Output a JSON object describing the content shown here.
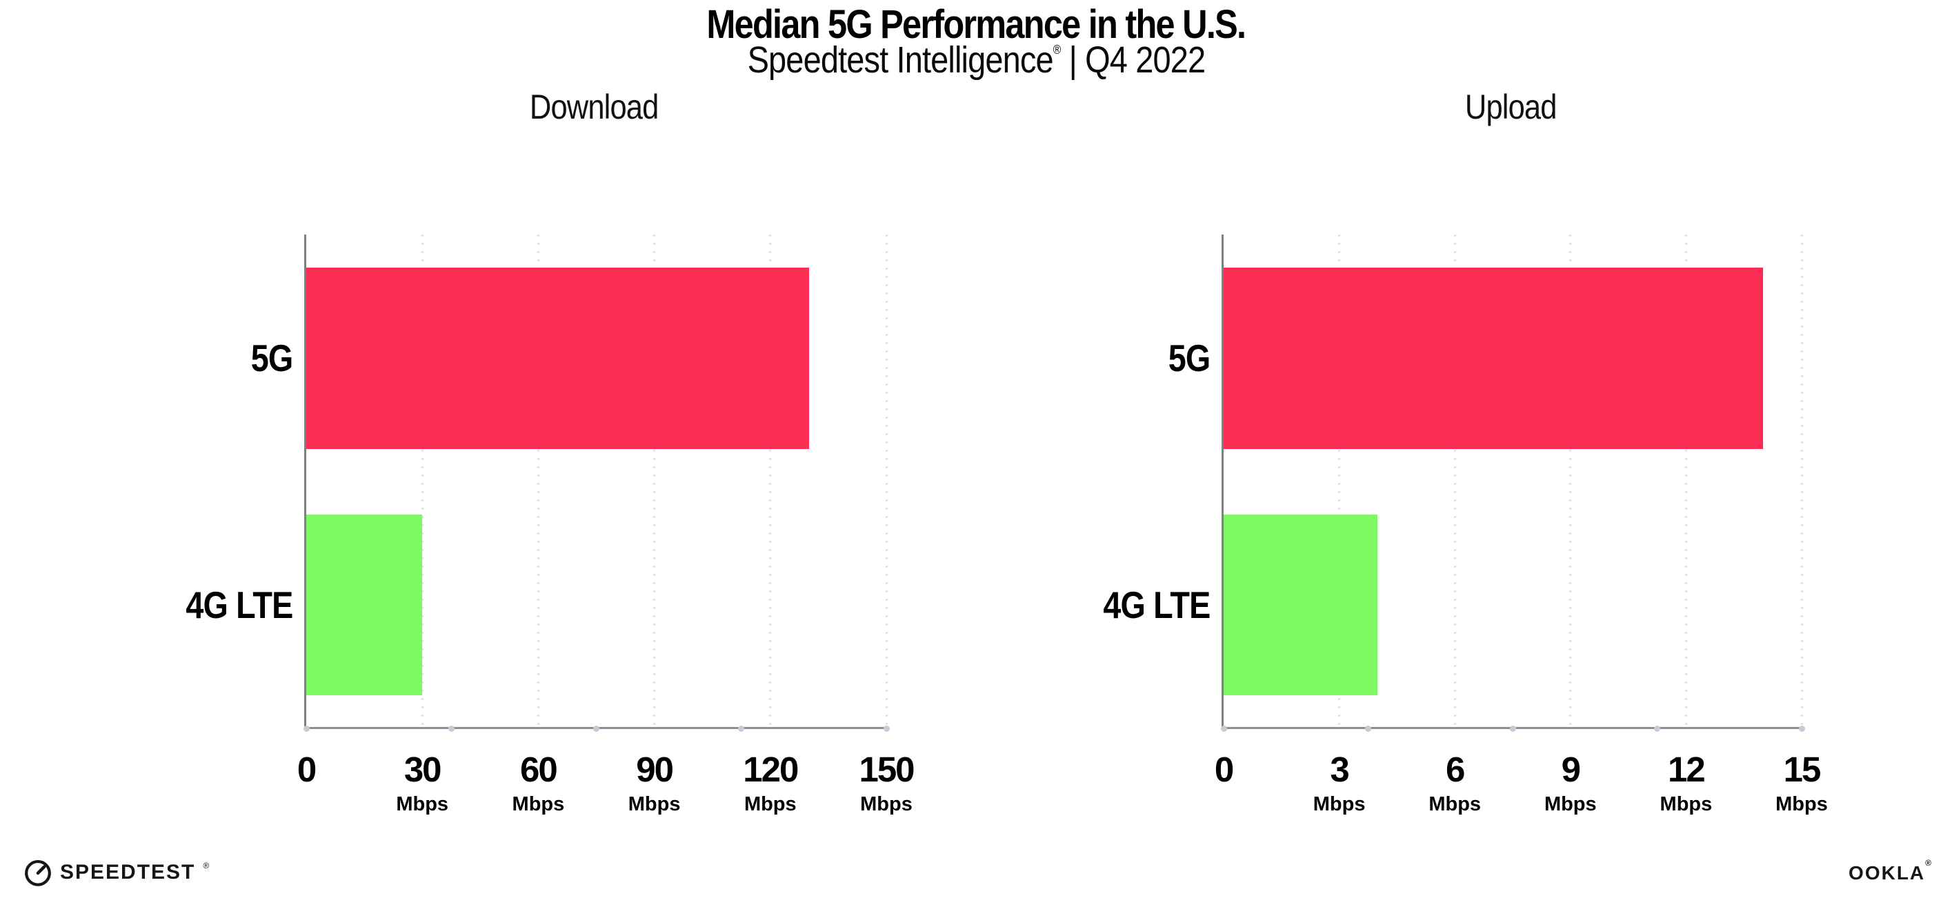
{
  "header": {
    "title": "Median 5G Performance in the U.S.",
    "subtitle_brand": "Speedtest Intelligence",
    "subtitle_reg": "®",
    "subtitle_separator": "|",
    "subtitle_period": "Q4 2022"
  },
  "chart_data": [
    {
      "type": "bar",
      "orientation": "horizontal",
      "title": "Download",
      "categories": [
        "5G",
        "4G LTE"
      ],
      "values": [
        130,
        30
      ],
      "unit": "Mbps",
      "xlim": [
        0,
        150
      ],
      "xticks": [
        0,
        30,
        60,
        90,
        120,
        150
      ],
      "bar_colors": [
        "#fd2e55",
        "#7ef963"
      ],
      "grid": "dotted-vertical",
      "legend": "none"
    },
    {
      "type": "bar",
      "orientation": "horizontal",
      "title": "Upload",
      "categories": [
        "5G",
        "4G LTE"
      ],
      "values": [
        14,
        4
      ],
      "unit": "Mbps",
      "xlim": [
        0,
        15
      ],
      "xticks": [
        0,
        3,
        6,
        9,
        12,
        15
      ],
      "bar_colors": [
        "#fd2e55",
        "#7ef963"
      ],
      "grid": "dotted-vertical",
      "legend": "none"
    }
  ],
  "footer": {
    "speedtest_label": "SPEEDTEST",
    "speedtest_reg": "®",
    "ookla_label": "OOKLA",
    "ookla_reg": "®"
  },
  "colors": {
    "bar_5g": "#fd2e55",
    "bar_4g_lte": "#7ef963",
    "gridline": "#e2e2ed",
    "axis": "#8d8d95",
    "background": "#ffffff",
    "text": "#000000"
  }
}
